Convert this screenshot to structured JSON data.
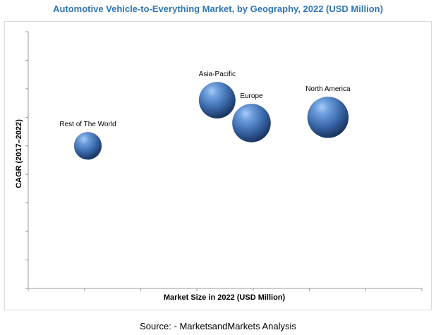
{
  "chart_data": {
    "type": "scatter",
    "subtype": "bubble",
    "title": "Automotive Vehicle-to-Everything Market, by Geography, 2022 (USD Million)",
    "xlabel": "Market Size in 2022 (USD Million)",
    "ylabel": "CAGR (2017–2022)",
    "xlim": [
      0,
      7
    ],
    "ylim": [
      0,
      9
    ],
    "x_ticks": 7,
    "y_ticks": 9,
    "grid": false,
    "legend": "none",
    "bubble_color": "#3f6fb0",
    "points": [
      {
        "label": "Rest of The World",
        "x": 1.06,
        "y": 5.0,
        "size": 1.0
      },
      {
        "label": "Asia-Pacific",
        "x": 3.36,
        "y": 6.6,
        "size": 1.8
      },
      {
        "label": "Europe",
        "x": 3.97,
        "y": 5.8,
        "size": 2.0
      },
      {
        "label": "North America",
        "x": 5.33,
        "y": 6.0,
        "size": 2.3
      }
    ]
  },
  "source": "Source: - MarketsandMarkets Analysis"
}
